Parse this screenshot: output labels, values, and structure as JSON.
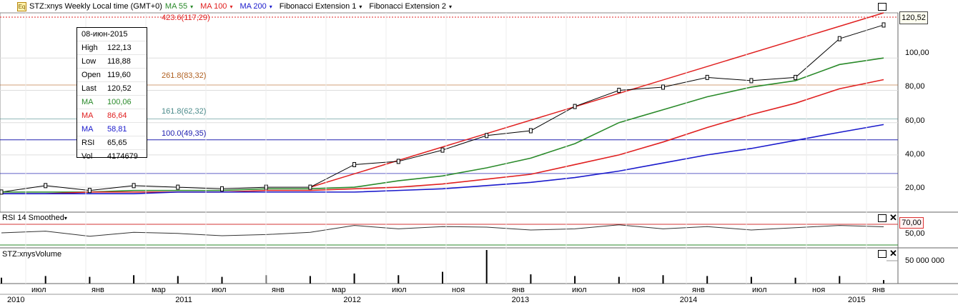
{
  "header": {
    "symbol_title": "STZ:xnys Weekly Local time (GMT+0)",
    "ma55_label": "MA 55",
    "ma100_label": "MA 100",
    "ma200_label": "MA 200",
    "fib1_label": "Fibonacci Extension 1",
    "fib2_label": "Fibonacci Extension 2",
    "caret": "▾"
  },
  "colors": {
    "ma55": "#2a8a2a",
    "ma100": "#e02020",
    "ma200": "#1a1acc",
    "fib_top": "#e02020",
    "fib_261": "#b06020",
    "fib_161": "#4a8a8a",
    "fib_100": "#2020b0",
    "rsi_level": "#d33333",
    "channel": "#e02020"
  },
  "data_window": {
    "date": "08-июн-2015",
    "rows": [
      {
        "k": "High",
        "v": "122,13",
        "color": "#000000"
      },
      {
        "k": "Low",
        "v": "118,88",
        "color": "#000000"
      },
      {
        "k": "Open",
        "v": "119,60",
        "color": "#000000"
      },
      {
        "k": "Last",
        "v": "120,52",
        "color": "#000000"
      },
      {
        "k": "MA",
        "v": "100,06",
        "color": "#2a8a2a"
      },
      {
        "k": "MA",
        "v": "86,64",
        "color": "#e02020"
      },
      {
        "k": "MA",
        "v": "58,81",
        "color": "#1a1acc"
      },
      {
        "k": "RSI",
        "v": "65,65",
        "color": "#000000"
      },
      {
        "k": "Vol",
        "v": "4174679",
        "color": "#000000"
      }
    ]
  },
  "fib_labels": {
    "l423": "423.6(117,29)",
    "l261": "261.8(83,32)",
    "l161": "161.8(62,32)",
    "l100": "100.0(49,35)"
  },
  "price_axis": {
    "last_value": "120,52",
    "ticks": [
      "100,00",
      "80,00",
      "60,00",
      "40,00",
      "20,00"
    ]
  },
  "rsi_panel": {
    "title": "RSI 14 Smoothed",
    "level_label": "70,00",
    "tick": "50,00"
  },
  "volume_panel": {
    "title": "STZ:xnysVolume",
    "tick": "50 000 000"
  },
  "time_axis": {
    "months": [
      "июл",
      "янв",
      "мар",
      "июл",
      "янв",
      "мар",
      "июл",
      "ноя",
      "янв",
      "июл",
      "ноя",
      "янв",
      "июл",
      "ноя",
      "янв"
    ],
    "years": [
      "2010",
      "2011",
      "2012",
      "2013",
      "2014",
      "2015"
    ]
  },
  "chart_data": {
    "type": "line",
    "ylim": [
      5,
      128
    ],
    "x": [
      "2010-06",
      "2010-09",
      "2010-12",
      "2011-03",
      "2011-06",
      "2011-09",
      "2011-12",
      "2012-03",
      "2012-06",
      "2012-09",
      "2012-12",
      "2013-03",
      "2013-06",
      "2013-09",
      "2013-12",
      "2014-03",
      "2014-06",
      "2014-09",
      "2014-12",
      "2015-03",
      "2015-06"
    ],
    "series": [
      {
        "values": [
          17,
          21,
          18,
          21,
          20,
          19,
          20,
          20,
          34,
          36,
          43,
          52,
          55,
          70,
          80,
          82,
          88,
          86,
          88,
          112,
          120.5
        ]
      },
      {
        "values": [
          17,
          17,
          17,
          18,
          18,
          18,
          19,
          19,
          20,
          24,
          27,
          32,
          38,
          47,
          60,
          68,
          76,
          82,
          86,
          96,
          100.06
        ]
      },
      {
        "values": [
          16,
          16,
          17,
          17,
          17,
          17,
          18,
          18,
          19,
          20,
          22,
          25,
          28,
          34,
          40,
          48,
          57,
          65,
          72,
          81,
          86.64
        ]
      },
      {
        "values": [
          16,
          16,
          16,
          16,
          17,
          17,
          17,
          17,
          17,
          18,
          19,
          21,
          23,
          26,
          30,
          35,
          40,
          44,
          49,
          54,
          58.81
        ]
      }
    ],
    "rsi_values": [
      55,
      58,
      49,
      56,
      54,
      50,
      52,
      56,
      68,
      62,
      66,
      65,
      60,
      62,
      69,
      62,
      66,
      60,
      64,
      68,
      65.65
    ],
    "volume_values": [
      7,
      9,
      8,
      10,
      9,
      8,
      10,
      9,
      12,
      10,
      14,
      40,
      11,
      9,
      8,
      10,
      9,
      8,
      7,
      9,
      4.17
    ]
  }
}
